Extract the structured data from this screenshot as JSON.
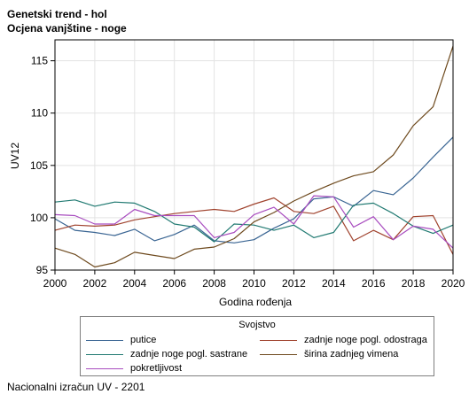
{
  "header": {
    "title": "Genetski trend - hol",
    "subtitle": "Ocjena vanjštine - noge"
  },
  "footer": {
    "note": "Nacionalni izračun UV - 2201"
  },
  "chart_data": {
    "type": "line",
    "title": "Genetski trend - hol",
    "subtitle": "Ocjena vanjštine - noge",
    "xlabel": "Godina rođenja",
    "ylabel": "UV12",
    "xlim": [
      2000,
      2020
    ],
    "ylim": [
      95,
      117
    ],
    "x_ticks": [
      2000,
      2002,
      2004,
      2006,
      2008,
      2010,
      2012,
      2014,
      2016,
      2018,
      2020
    ],
    "y_ticks": [
      95,
      100,
      105,
      110,
      115
    ],
    "grid": true,
    "legend_title": "Svojstvo",
    "legend_position": "bottom",
    "x": [
      2000,
      2001,
      2002,
      2003,
      2004,
      2005,
      2006,
      2007,
      2008,
      2009,
      2010,
      2011,
      2012,
      2013,
      2014,
      2015,
      2016,
      2017,
      2018,
      2019,
      2020
    ],
    "series": [
      {
        "name": "putice",
        "color": "#3a6593",
        "values": [
          99.9,
          98.8,
          98.6,
          98.3,
          98.9,
          97.8,
          98.4,
          99.3,
          97.8,
          97.6,
          97.9,
          99.0,
          99.9,
          101.8,
          102.0,
          101.1,
          102.6,
          102.2,
          103.8,
          105.8,
          107.7
        ]
      },
      {
        "name": "zadnje noge pogl. odostraga",
        "color": "#a0432e",
        "values": [
          98.8,
          99.3,
          99.2,
          99.3,
          99.8,
          100.1,
          100.4,
          100.6,
          100.8,
          100.6,
          101.3,
          101.9,
          100.6,
          100.4,
          101.1,
          97.8,
          98.8,
          97.9,
          100.1,
          100.2,
          96.5
        ]
      },
      {
        "name": "zadnje noge pogl. sastrane",
        "color": "#217a72",
        "values": [
          101.5,
          101.7,
          101.1,
          101.5,
          101.4,
          100.6,
          99.4,
          99.1,
          97.7,
          99.4,
          99.3,
          98.8,
          99.3,
          98.1,
          98.6,
          101.2,
          101.4,
          100.4,
          99.2,
          98.5,
          99.3
        ]
      },
      {
        "name": "širina zadnjeg vimena",
        "color": "#6e4a1e",
        "values": [
          97.1,
          96.5,
          95.3,
          95.7,
          96.7,
          96.4,
          96.1,
          97.0,
          97.2,
          98.0,
          99.6,
          100.5,
          101.6,
          102.5,
          103.3,
          104.0,
          104.4,
          106.0,
          108.8,
          110.6,
          116.4
        ]
      },
      {
        "name": "pokretljivost",
        "color": "#a84cbf",
        "values": [
          100.3,
          100.2,
          99.4,
          99.4,
          100.8,
          100.2,
          100.2,
          100.2,
          98.1,
          98.6,
          100.3,
          101.0,
          99.4,
          102.1,
          102.0,
          99.1,
          100.1,
          97.9,
          99.2,
          98.9,
          97.1
        ]
      }
    ]
  }
}
